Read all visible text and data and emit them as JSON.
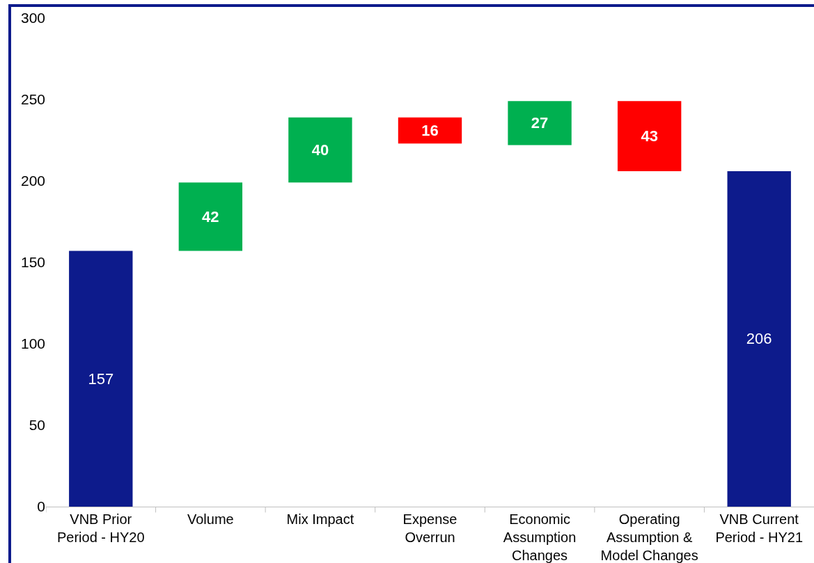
{
  "chart_data": {
    "type": "bar",
    "categories": [
      "VNB Prior Period - HY20",
      "Volume",
      "Mix Impact",
      "Expense Overrun",
      "Economic Assumption Changes",
      "Operating Assumption & Model Changes",
      "VNB Current Period - HY21"
    ],
    "values": [
      157,
      42,
      40,
      16,
      27,
      43,
      206
    ],
    "base": [
      0,
      157,
      199,
      223,
      222,
      206,
      0
    ],
    "colors": [
      "#0d1b8c",
      "#00b050",
      "#00b050",
      "#ff0000",
      "#00b050",
      "#ff0000",
      "#0d1b8c"
    ],
    "ylim": [
      0,
      300
    ],
    "yticks": [
      0,
      50,
      100,
      150,
      200,
      250,
      300
    ],
    "grid": false,
    "legend": false,
    "data_labels": true
  }
}
